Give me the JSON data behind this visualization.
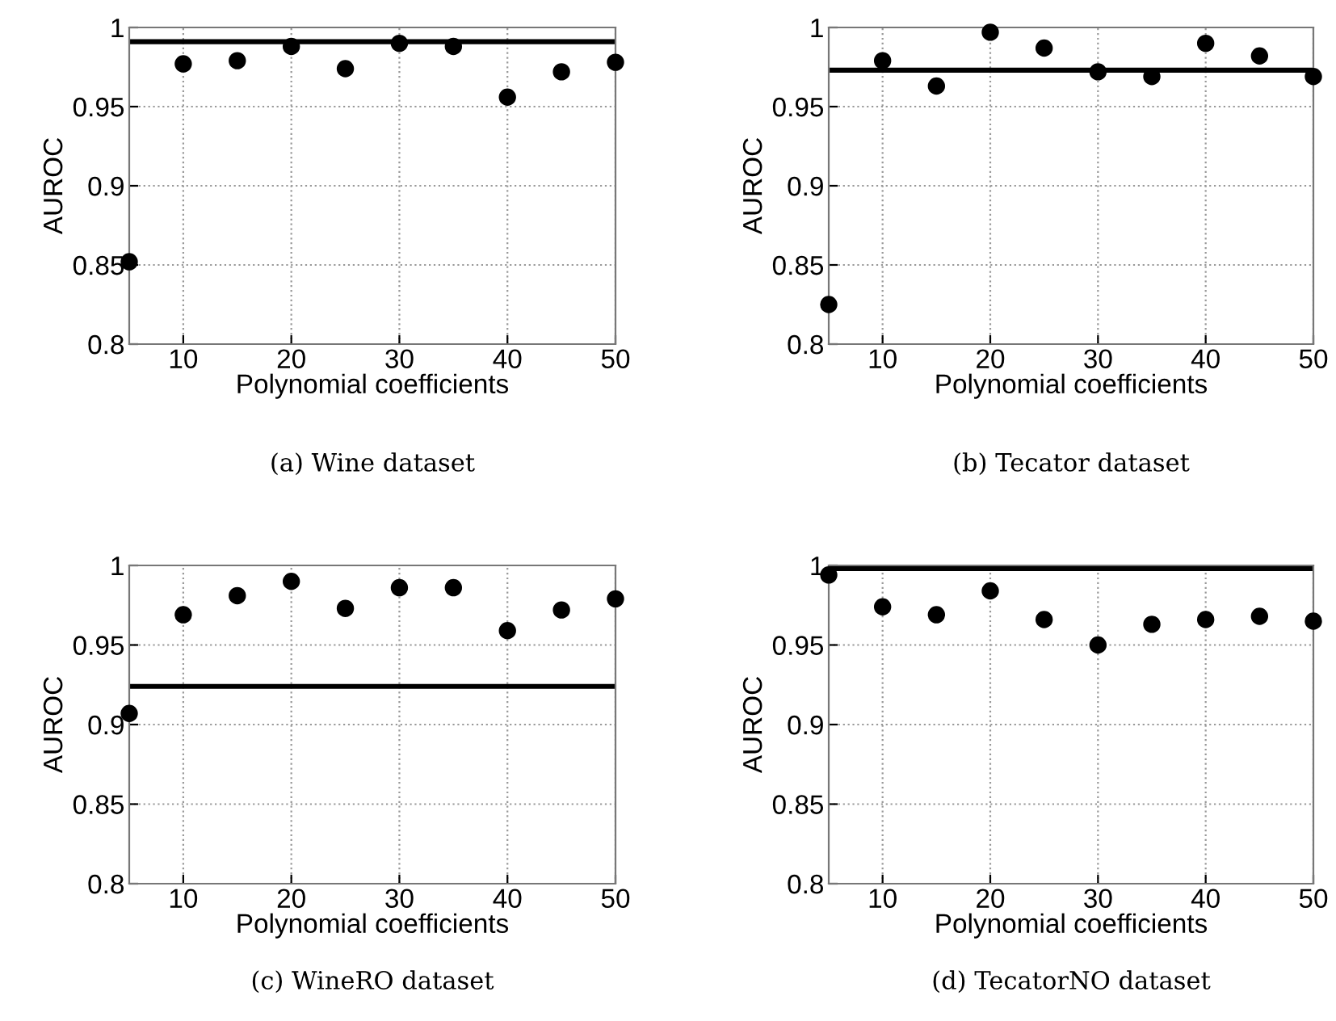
{
  "chart_data": [
    {
      "type": "scatter",
      "title": "(a) Wine dataset",
      "xlabel": "Polynomial coefficients",
      "ylabel": "AUROC",
      "x": [
        5,
        10,
        15,
        20,
        25,
        30,
        35,
        40,
        45,
        50
      ],
      "series": [
        {
          "color": "#000000",
          "values": [
            0.852,
            0.977,
            0.979,
            0.988,
            0.974,
            0.99,
            0.988,
            0.956,
            0.972,
            0.978
          ]
        }
      ],
      "ref_lines": [
        {
          "axis": "y",
          "value": 0.991,
          "color": "#000000"
        }
      ],
      "xlim": [
        5,
        50
      ],
      "ylim": [
        0.8,
        1
      ],
      "xticks": [
        10,
        20,
        30,
        40,
        50
      ],
      "yticks": [
        0.8,
        0.85,
        0.9,
        0.95,
        1
      ],
      "grid": true,
      "marker": "circle"
    },
    {
      "type": "scatter",
      "title": "(b) Tecator dataset",
      "xlabel": "Polynomial coefficients",
      "ylabel": "AUROC",
      "x": [
        5,
        10,
        15,
        20,
        25,
        30,
        35,
        40,
        45,
        50
      ],
      "series": [
        {
          "color": "#000000",
          "values": [
            0.825,
            0.979,
            0.963,
            0.997,
            0.987,
            0.972,
            0.969,
            0.99,
            0.982,
            0.969
          ]
        }
      ],
      "ref_lines": [
        {
          "axis": "y",
          "value": 0.973,
          "color": "#000000"
        }
      ],
      "xlim": [
        5,
        50
      ],
      "ylim": [
        0.8,
        1
      ],
      "xticks": [
        10,
        20,
        30,
        40,
        50
      ],
      "yticks": [
        0.8,
        0.85,
        0.9,
        0.95,
        1
      ],
      "grid": true,
      "marker": "circle"
    },
    {
      "type": "scatter",
      "title": "(c) WineRO dataset",
      "xlabel": "Polynomial coefficients",
      "ylabel": "AUROC",
      "x": [
        5,
        10,
        15,
        20,
        25,
        30,
        35,
        40,
        45,
        50
      ],
      "series": [
        {
          "color": "#000000",
          "values": [
            0.907,
            0.969,
            0.981,
            0.99,
            0.973,
            0.986,
            0.986,
            0.959,
            0.972,
            0.979
          ]
        }
      ],
      "ref_lines": [
        {
          "axis": "y",
          "value": 0.924,
          "color": "#000000"
        }
      ],
      "xlim": [
        5,
        50
      ],
      "ylim": [
        0.8,
        1
      ],
      "xticks": [
        10,
        20,
        30,
        40,
        50
      ],
      "yticks": [
        0.8,
        0.85,
        0.9,
        0.95,
        1
      ],
      "grid": true,
      "marker": "circle"
    },
    {
      "type": "scatter",
      "title": "(d) TecatorNO dataset",
      "xlabel": "Polynomial coefficients",
      "ylabel": "AUROC",
      "x": [
        5,
        10,
        15,
        20,
        25,
        30,
        35,
        40,
        45,
        50
      ],
      "series": [
        {
          "color": "#000000",
          "values": [
            0.994,
            0.974,
            0.969,
            0.984,
            0.966,
            0.95,
            0.963,
            0.966,
            0.968,
            0.965
          ]
        }
      ],
      "ref_lines": [
        {
          "axis": "y",
          "value": 0.998,
          "color": "#000000"
        }
      ],
      "xlim": [
        5,
        50
      ],
      "ylim": [
        0.8,
        1
      ],
      "xticks": [
        10,
        20,
        30,
        40,
        50
      ],
      "yticks": [
        0.8,
        0.85,
        0.9,
        0.95,
        1
      ],
      "grid": true,
      "marker": "circle"
    }
  ]
}
